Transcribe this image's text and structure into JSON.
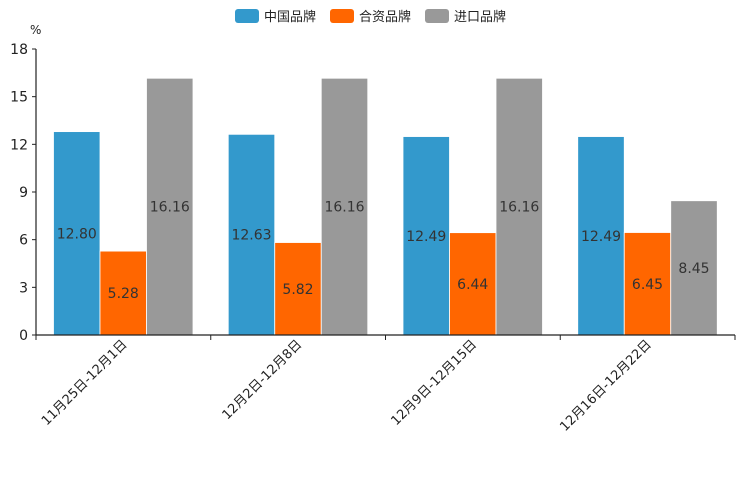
{
  "chart_data": {
    "type": "bar",
    "title": "",
    "xlabel": "",
    "ylabel": "%",
    "ylim": [
      0,
      18
    ],
    "yticks": [
      "0",
      "3",
      "6",
      "9",
      "12",
      "15",
      "18"
    ],
    "grid": false,
    "legend_position": "top-center",
    "categories": [
      "11月25日-12月1日",
      "12月2日-12月8日",
      "12月9日-12月15日",
      "12月16日-12月22日"
    ],
    "series": [
      {
        "name": "中国品牌",
        "color": "#3399CC",
        "values": [
          12.8,
          12.63,
          12.49,
          12.49
        ],
        "labels": [
          "12.80",
          "12.63",
          "12.49",
          "12.49"
        ]
      },
      {
        "name": "合资品牌",
        "color": "#FF6600",
        "values": [
          5.28,
          5.82,
          6.44,
          6.45
        ],
        "labels": [
          "5.28",
          "5.82",
          "6.44",
          "6.45"
        ]
      },
      {
        "name": "进口品牌",
        "color": "#999999",
        "values": [
          16.16,
          16.16,
          16.16,
          8.45
        ],
        "labels": [
          "16.16",
          "16.16",
          "16.16",
          "8.45"
        ]
      }
    ]
  }
}
